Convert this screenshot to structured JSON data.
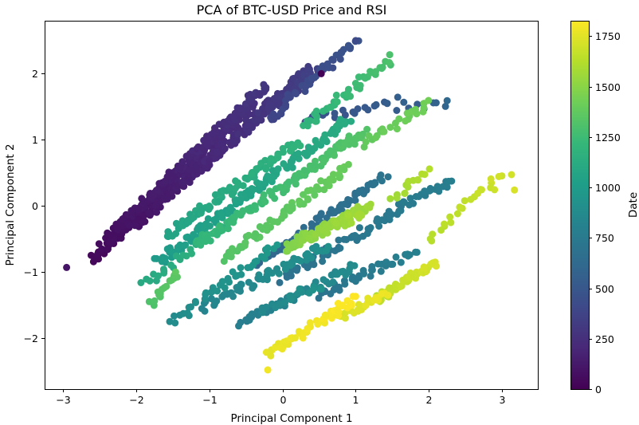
{
  "chart_data": {
    "type": "scatter",
    "title": "PCA of BTC-USD Price and RSI",
    "xlabel": "Principal Component 1",
    "ylabel": "Principal Component 2",
    "xlim": [
      -3.25,
      3.5
    ],
    "ylim": [
      -2.77,
      2.8
    ],
    "xticks": [
      -3,
      -2,
      -1,
      0,
      1,
      2,
      3
    ],
    "yticks": [
      -2,
      -1,
      0,
      1,
      2
    ],
    "xtick_labels": [
      "−3",
      "−2",
      "−1",
      "0",
      "1",
      "2",
      "3"
    ],
    "ytick_labels": [
      "−2",
      "−1",
      "0",
      "1",
      "2"
    ],
    "colorbar": {
      "label": "Date",
      "colormap": "viridis",
      "range": [
        0,
        1827
      ],
      "ticks": [
        0,
        250,
        500,
        750,
        1000,
        1250,
        1500,
        1750
      ],
      "tick_labels": [
        "0",
        "250",
        "500",
        "750",
        "1000",
        "1250",
        "1500",
        "1750"
      ]
    },
    "colormap_stops": [
      "#440154",
      "#482878",
      "#3e4989",
      "#31688e",
      "#26828e",
      "#1f9e89",
      "#35b779",
      "#6ece58",
      "#b5de2b",
      "#fde725"
    ],
    "grid": false,
    "legend": "none",
    "series": [
      {
        "segments": [
          {
            "x0": -2.6,
            "y0": -0.82,
            "x1": -0.4,
            "y1": 1.55,
            "c0": 30,
            "c1": 260,
            "n": 175
          },
          {
            "x0": -2.45,
            "y0": -0.55,
            "x1": -0.25,
            "y1": 1.8,
            "c0": 60,
            "c1": 290,
            "n": 170
          },
          {
            "x0": -2.0,
            "y0": -0.3,
            "x1": 0.35,
            "y1": 2.05,
            "c0": 90,
            "c1": 330,
            "n": 135
          },
          {
            "x0": -1.6,
            "y0": 0.15,
            "x1": 0.45,
            "y1": 2.05,
            "c0": 130,
            "c1": 360,
            "n": 90
          },
          {
            "x0": -0.2,
            "y0": 1.3,
            "x1": 1.0,
            "y1": 2.5,
            "c0": 380,
            "c1": 470,
            "n": 45
          },
          {
            "x0": 0.3,
            "y0": 1.3,
            "x1": 1.6,
            "y1": 1.6,
            "c0": 440,
            "c1": 560,
            "n": 22
          },
          {
            "x0": 1.6,
            "y0": 1.45,
            "x1": 2.3,
            "y1": 1.55,
            "c0": 520,
            "c1": 600,
            "n": 10
          },
          {
            "x0": -0.3,
            "y0": -0.85,
            "x1": 1.4,
            "y1": 0.45,
            "c0": 600,
            "c1": 700,
            "n": 70
          },
          {
            "x0": 0.0,
            "y0": -1.1,
            "x1": 2.3,
            "y1": 0.4,
            "c0": 680,
            "c1": 780,
            "n": 85
          },
          {
            "x0": 0.5,
            "y0": -1.35,
            "x1": 1.8,
            "y1": -0.7,
            "c0": 700,
            "c1": 800,
            "n": 40
          },
          {
            "x0": -0.6,
            "y0": -1.8,
            "x1": 1.0,
            "y1": -0.9,
            "c0": 780,
            "c1": 880,
            "n": 50
          },
          {
            "x0": -1.1,
            "y0": -1.55,
            "x1": 0.6,
            "y1": -0.6,
            "c0": 830,
            "c1": 920,
            "n": 60
          },
          {
            "x0": -1.5,
            "y0": -1.75,
            "x1": -0.1,
            "y1": -0.6,
            "c0": 880,
            "c1": 980,
            "n": 40
          },
          {
            "x0": -0.3,
            "y0": -1.6,
            "x1": 0.5,
            "y1": -1.2,
            "c0": 850,
            "c1": 930,
            "n": 20
          },
          {
            "x0": -1.7,
            "y0": -0.85,
            "x1": 0.9,
            "y1": 1.3,
            "c0": 1000,
            "c1": 1120,
            "n": 130
          },
          {
            "x0": -1.6,
            "y0": -0.45,
            "x1": 0.2,
            "y1": 0.95,
            "c0": 1060,
            "c1": 1180,
            "n": 80
          },
          {
            "x0": -1.9,
            "y0": -1.18,
            "x1": -0.7,
            "y1": -0.2,
            "c0": 1100,
            "c1": 1180,
            "n": 30
          },
          {
            "x0": 0.3,
            "y0": 1.2,
            "x1": 1.5,
            "y1": 2.25,
            "c0": 1180,
            "c1": 1300,
            "n": 45
          },
          {
            "x0": -1.2,
            "y0": -0.6,
            "x1": 1.1,
            "y1": 1.1,
            "c0": 1200,
            "c1": 1330,
            "n": 120
          },
          {
            "x0": -1.8,
            "y0": -1.5,
            "x1": -1.4,
            "y1": -1.0,
            "c0": 1310,
            "c1": 1360,
            "n": 20
          },
          {
            "x0": -0.8,
            "y0": -0.8,
            "x1": 0.9,
            "y1": 0.6,
            "c0": 1330,
            "c1": 1400,
            "n": 70
          },
          {
            "x0": 1.1,
            "y0": 0.95,
            "x1": 2.0,
            "y1": 1.55,
            "c0": 1380,
            "c1": 1430,
            "n": 25
          },
          {
            "x0": 0.0,
            "y0": -0.65,
            "x1": 1.2,
            "y1": 0.0,
            "c0": 1470,
            "c1": 1560,
            "n": 70
          },
          {
            "x0": 0.3,
            "y0": -0.5,
            "x1": 1.1,
            "y1": -0.1,
            "c0": 1500,
            "c1": 1580,
            "n": 40
          },
          {
            "x0": 1.5,
            "y0": 0.1,
            "x1": 2.0,
            "y1": 0.55,
            "c0": 1560,
            "c1": 1620,
            "n": 14
          },
          {
            "x0": 2.0,
            "y0": -0.5,
            "x1": 3.0,
            "y1": 0.5,
            "c0": 1620,
            "c1": 1700,
            "n": 22
          },
          {
            "x0": 1.3,
            "y0": -1.4,
            "x1": 2.1,
            "y1": -0.85,
            "c0": 1640,
            "c1": 1720,
            "n": 45
          },
          {
            "x0": 0.7,
            "y0": -1.7,
            "x1": 1.4,
            "y1": -1.35,
            "c0": 1700,
            "c1": 1780,
            "n": 30
          },
          {
            "x0": -0.2,
            "y0": -2.25,
            "x1": 1.0,
            "y1": -1.4,
            "c0": 1760,
            "c1": 1827,
            "n": 55
          },
          {
            "x0": 2.95,
            "y0": 0.25,
            "x1": 3.15,
            "y1": 0.5,
            "c0": 1680,
            "c1": 1700,
            "n": 2
          }
        ]
      }
    ]
  }
}
